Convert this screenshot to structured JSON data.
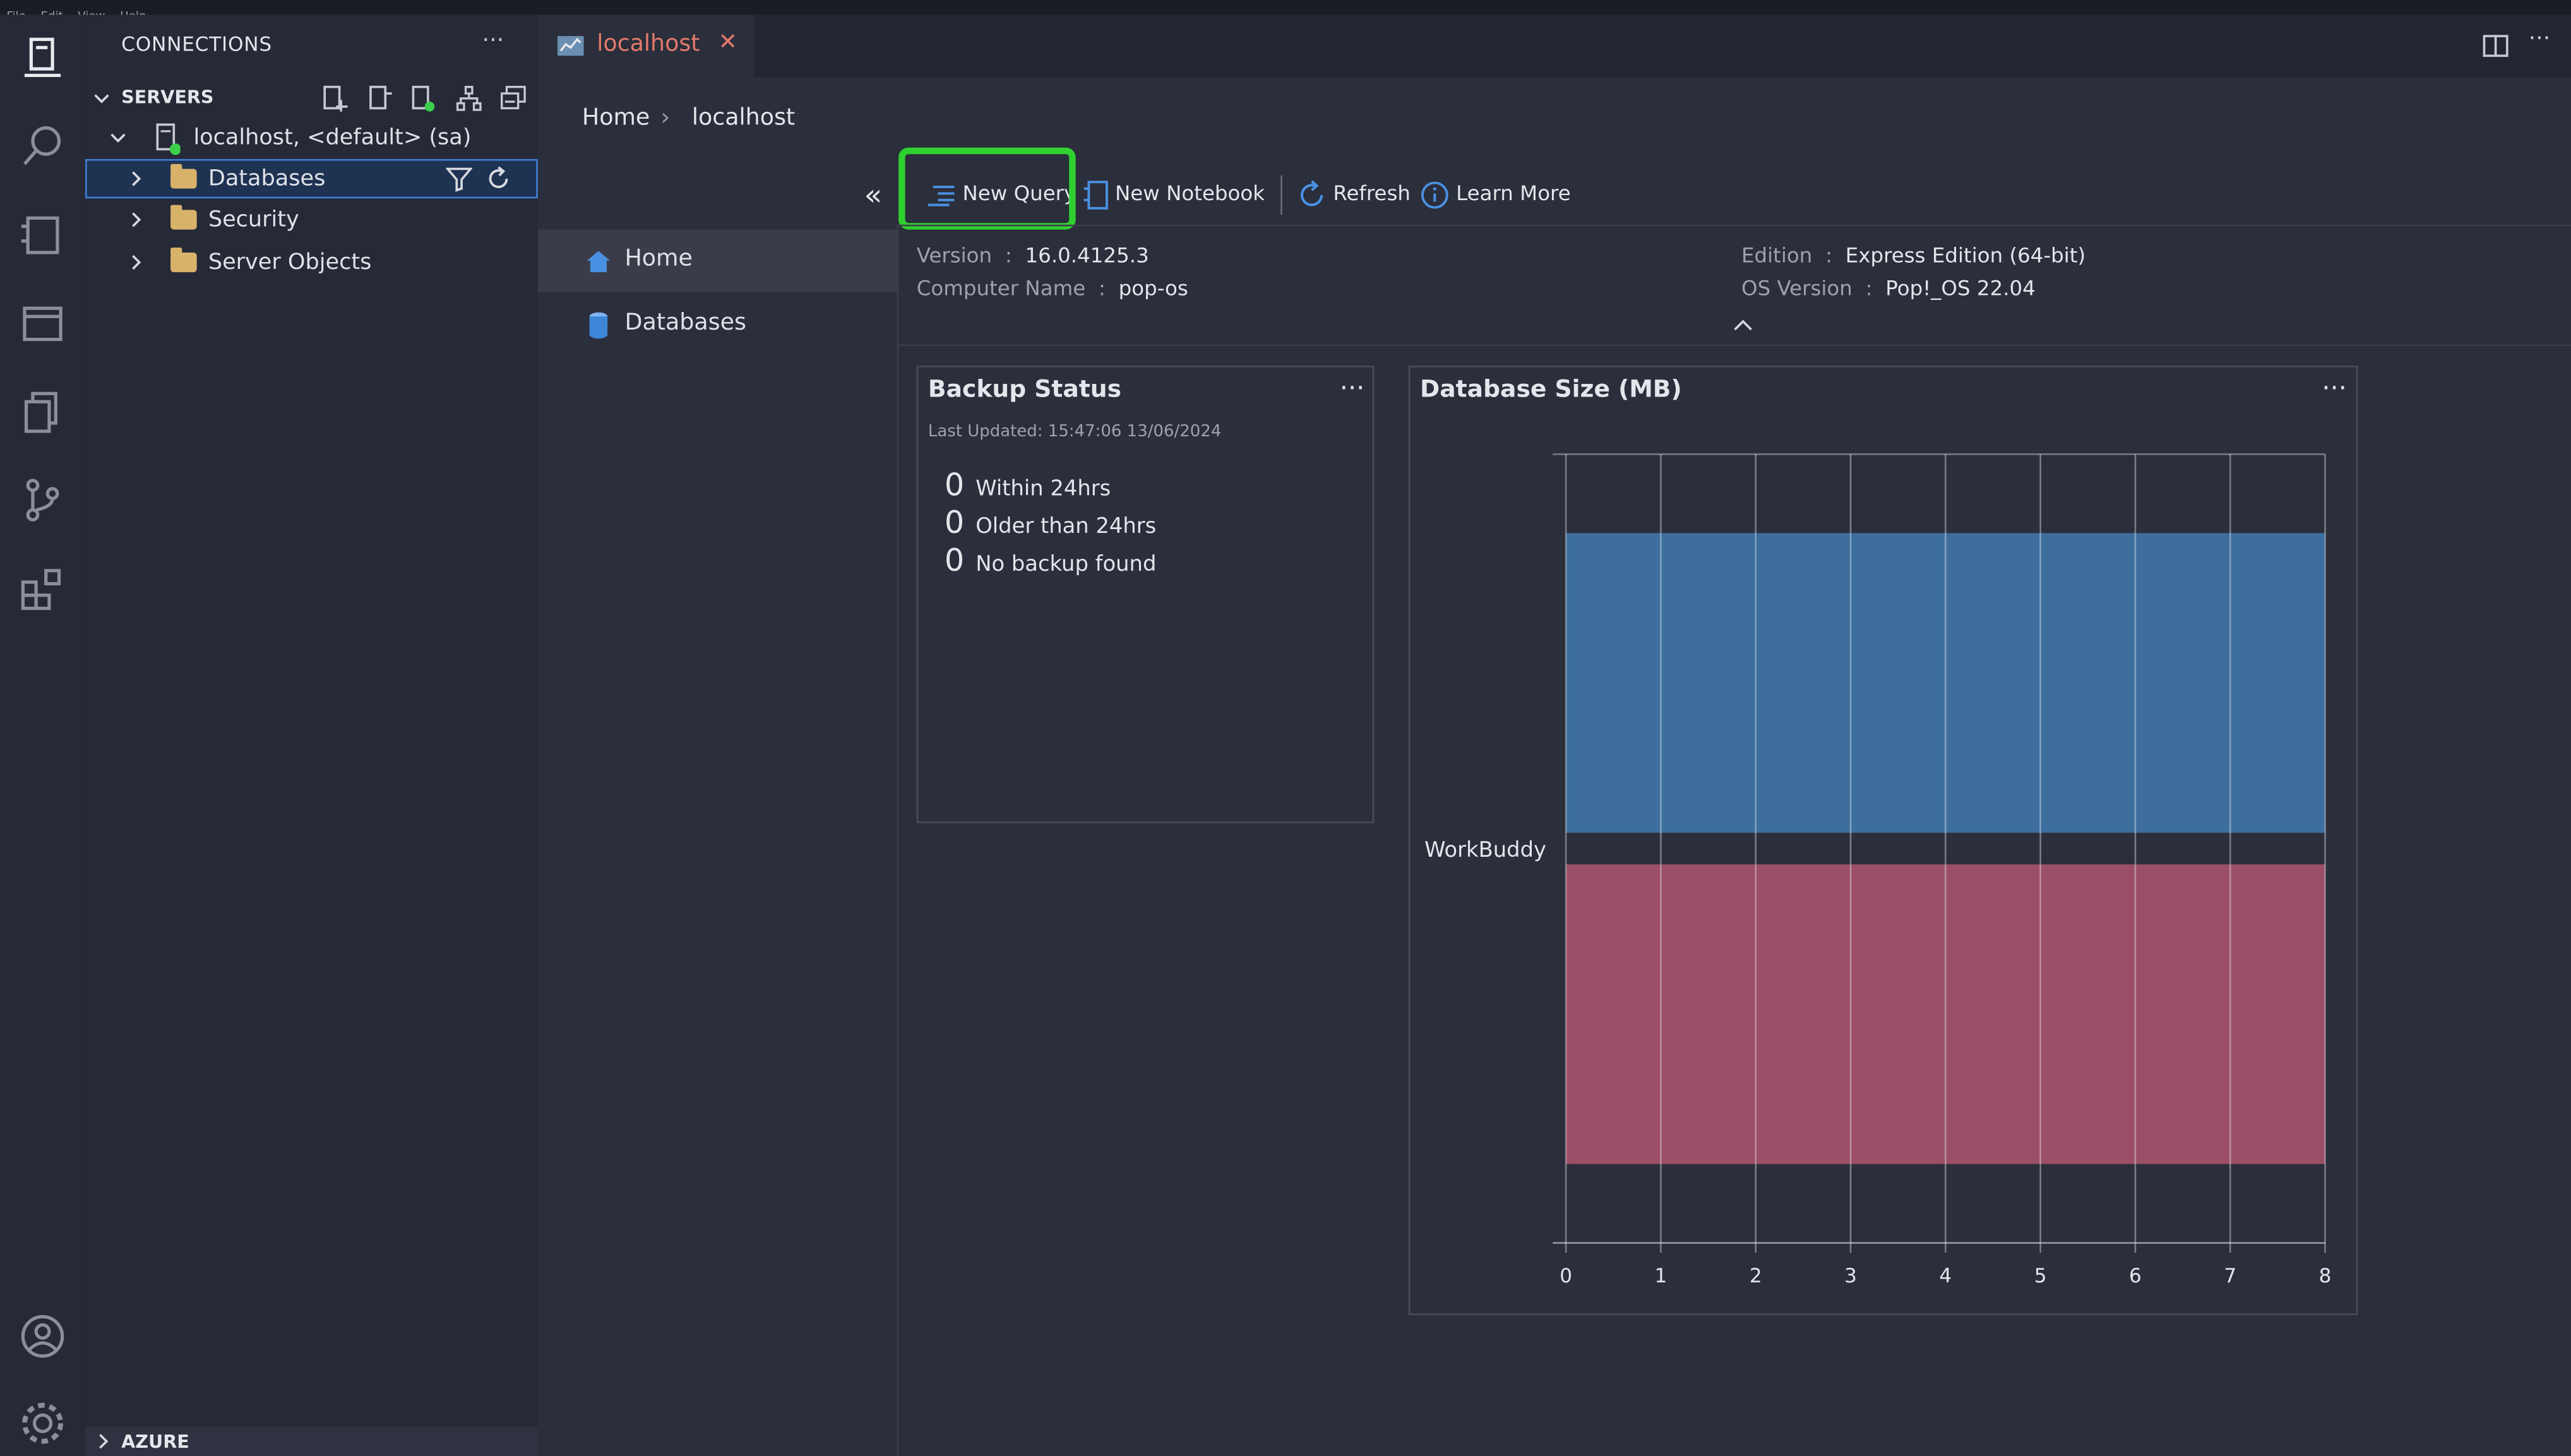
{
  "menubar": {
    "items": [
      "File",
      "Edit",
      "View",
      "Help"
    ]
  },
  "sidebar": {
    "title": "CONNECTIONS",
    "more": "···",
    "servers_label": "SERVERS",
    "server_node": "localhost, <default> (sa)",
    "tree": [
      {
        "label": "Databases",
        "selected": true
      },
      {
        "label": "Security",
        "selected": false
      },
      {
        "label": "Server Objects",
        "selected": false
      }
    ],
    "azure_label": "AZURE"
  },
  "tabs": [
    {
      "label": "localhost",
      "close": "✕"
    }
  ],
  "breadcrumb": {
    "home": "Home",
    "sep": "›",
    "current": "localhost"
  },
  "dashboard_nav": {
    "collapse": "«",
    "items": [
      "Home",
      "Databases"
    ]
  },
  "toolbar": {
    "new_query": "New Query",
    "new_notebook": "New Notebook",
    "refresh": "Refresh",
    "learn_more": "Learn More"
  },
  "server_info": {
    "version_label": "Version",
    "version_value": "16.0.4125.3",
    "computer_label": "Computer Name",
    "computer_value": "pop-os",
    "edition_label": "Edition",
    "edition_value": "Express Edition (64-bit)",
    "os_label": "OS Version",
    "os_value": "Pop!_OS 22.04",
    "colon": ":"
  },
  "backup": {
    "title": "Backup Status",
    "more": "···",
    "last_updated": "Last Updated: 15:47:06 13/06/2024",
    "rows": [
      {
        "value": "0",
        "label": "Within 24hrs"
      },
      {
        "value": "0",
        "label": "Older than 24hrs"
      },
      {
        "value": "0",
        "label": "No backup found"
      }
    ]
  },
  "colors": {
    "accent": "#3f7fd6",
    "highlight": "#2fd12f",
    "tab_text": "#e37a6b"
  },
  "chart_data": {
    "type": "bar",
    "orientation": "horizontal",
    "title": "Database Size (MB)",
    "categories": [
      "WorkBuddy"
    ],
    "series": [
      {
        "values": [
          8
        ],
        "color": "#3d6e9e"
      },
      {
        "values": [
          8
        ],
        "color": "#9b4f66"
      }
    ],
    "xlim": [
      0,
      8
    ],
    "xticks": [
      "0",
      "1",
      "2",
      "3",
      "4",
      "5",
      "6",
      "7",
      "8"
    ],
    "grid": true
  }
}
